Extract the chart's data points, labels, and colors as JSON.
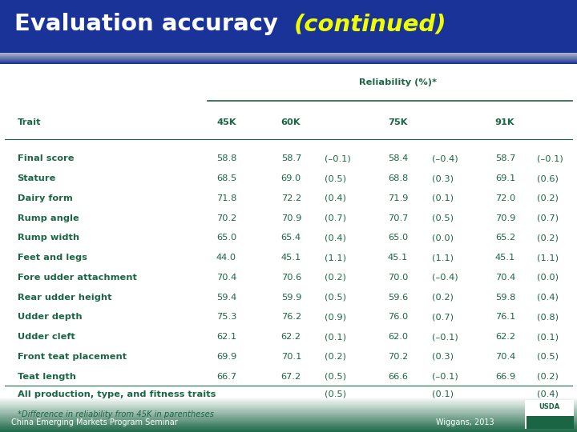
{
  "title_normal": "Evaluation accuracy ",
  "title_italic": "(continued)",
  "title_bg": "#1a3399",
  "title_fade_bottom": "#9999cc",
  "content_bg": "#ffffff",
  "outer_bg": "#ffffff",
  "footer_bg": "#1a6644",
  "reliability_label": "Reliability (%)*",
  "rows": [
    {
      "trait": "Final score",
      "45k": "58.8",
      "60k": "58.7",
      "60k_diff": "(–0.1)",
      "75k": "58.4",
      "75k_diff": "(–0.4)",
      "91k": "58.7",
      "91k_diff": "(–0.1)"
    },
    {
      "trait": "Stature",
      "45k": "68.5",
      "60k": "69.0",
      "60k_diff": "(0.5)",
      "75k": "68.8",
      "75k_diff": "(0.3)",
      "91k": "69.1",
      "91k_diff": "(0.6)"
    },
    {
      "trait": "Dairy form",
      "45k": "71.8",
      "60k": "72.2",
      "60k_diff": "(0.4)",
      "75k": "71.9",
      "75k_diff": "(0.1)",
      "91k": "72.0",
      "91k_diff": "(0.2)"
    },
    {
      "trait": "Rump angle",
      "45k": "70.2",
      "60k": "70.9",
      "60k_diff": "(0.7)",
      "75k": "70.7",
      "75k_diff": "(0.5)",
      "91k": "70.9",
      "91k_diff": "(0.7)"
    },
    {
      "trait": "Rump width",
      "45k": "65.0",
      "60k": "65.4",
      "60k_diff": "(0.4)",
      "75k": "65.0",
      "75k_diff": "(0.0)",
      "91k": "65.2",
      "91k_diff": "(0.2)"
    },
    {
      "trait": "Feet and legs",
      "45k": "44.0",
      "60k": "45.1",
      "60k_diff": "(1.1)",
      "75k": "45.1",
      "75k_diff": "(1.1)",
      "91k": "45.1",
      "91k_diff": "(1.1)"
    },
    {
      "trait": "Fore udder attachment",
      "45k": "70.4",
      "60k": "70.6",
      "60k_diff": "(0.2)",
      "75k": "70.0",
      "75k_diff": "(–0.4)",
      "91k": "70.4",
      "91k_diff": "(0.0)"
    },
    {
      "trait": "Rear udder height",
      "45k": "59.4",
      "60k": "59.9",
      "60k_diff": "(0.5)",
      "75k": "59.6",
      "75k_diff": "(0.2)",
      "91k": "59.8",
      "91k_diff": "(0.4)"
    },
    {
      "trait": "Udder depth",
      "45k": "75.3",
      "60k": "76.2",
      "60k_diff": "(0.9)",
      "75k": "76.0",
      "75k_diff": "(0.7)",
      "91k": "76.1",
      "91k_diff": "(0.8)"
    },
    {
      "trait": "Udder cleft",
      "45k": "62.1",
      "60k": "62.2",
      "60k_diff": "(0.1)",
      "75k": "62.0",
      "75k_diff": "(–0.1)",
      "91k": "62.2",
      "91k_diff": "(0.1)"
    },
    {
      "trait": "Front teat placement",
      "45k": "69.9",
      "60k": "70.1",
      "60k_diff": "(0.2)",
      "75k": "70.2",
      "75k_diff": "(0.3)",
      "91k": "70.4",
      "91k_diff": "(0.5)"
    },
    {
      "trait": "Teat length",
      "45k": "66.7",
      "60k": "67.2",
      "60k_diff": "(0.5)",
      "75k": "66.6",
      "75k_diff": "(–0.1)",
      "91k": "66.9",
      "91k_diff": "(0.2)"
    }
  ],
  "all_prod_label": "All production, type, and fitness traits",
  "all_prod_60k": "(0.5)",
  "all_prod_75k": "(0.1)",
  "all_prod_91k": "(0.4)",
  "footnote": "*Difference in reliability from 45K in parentheses",
  "footer_left": "China Emerging Markets Program Seminar",
  "footer_right": "Wiggans, 2013",
  "text_color": "#1a6644",
  "yellow_color": "#eeff00",
  "col_trait": 0.03,
  "col_45k": 0.375,
  "col_60k": 0.487,
  "col_60k_d": 0.562,
  "col_75k": 0.672,
  "col_75k_d": 0.748,
  "col_91k": 0.858,
  "col_91k_d": 0.93
}
